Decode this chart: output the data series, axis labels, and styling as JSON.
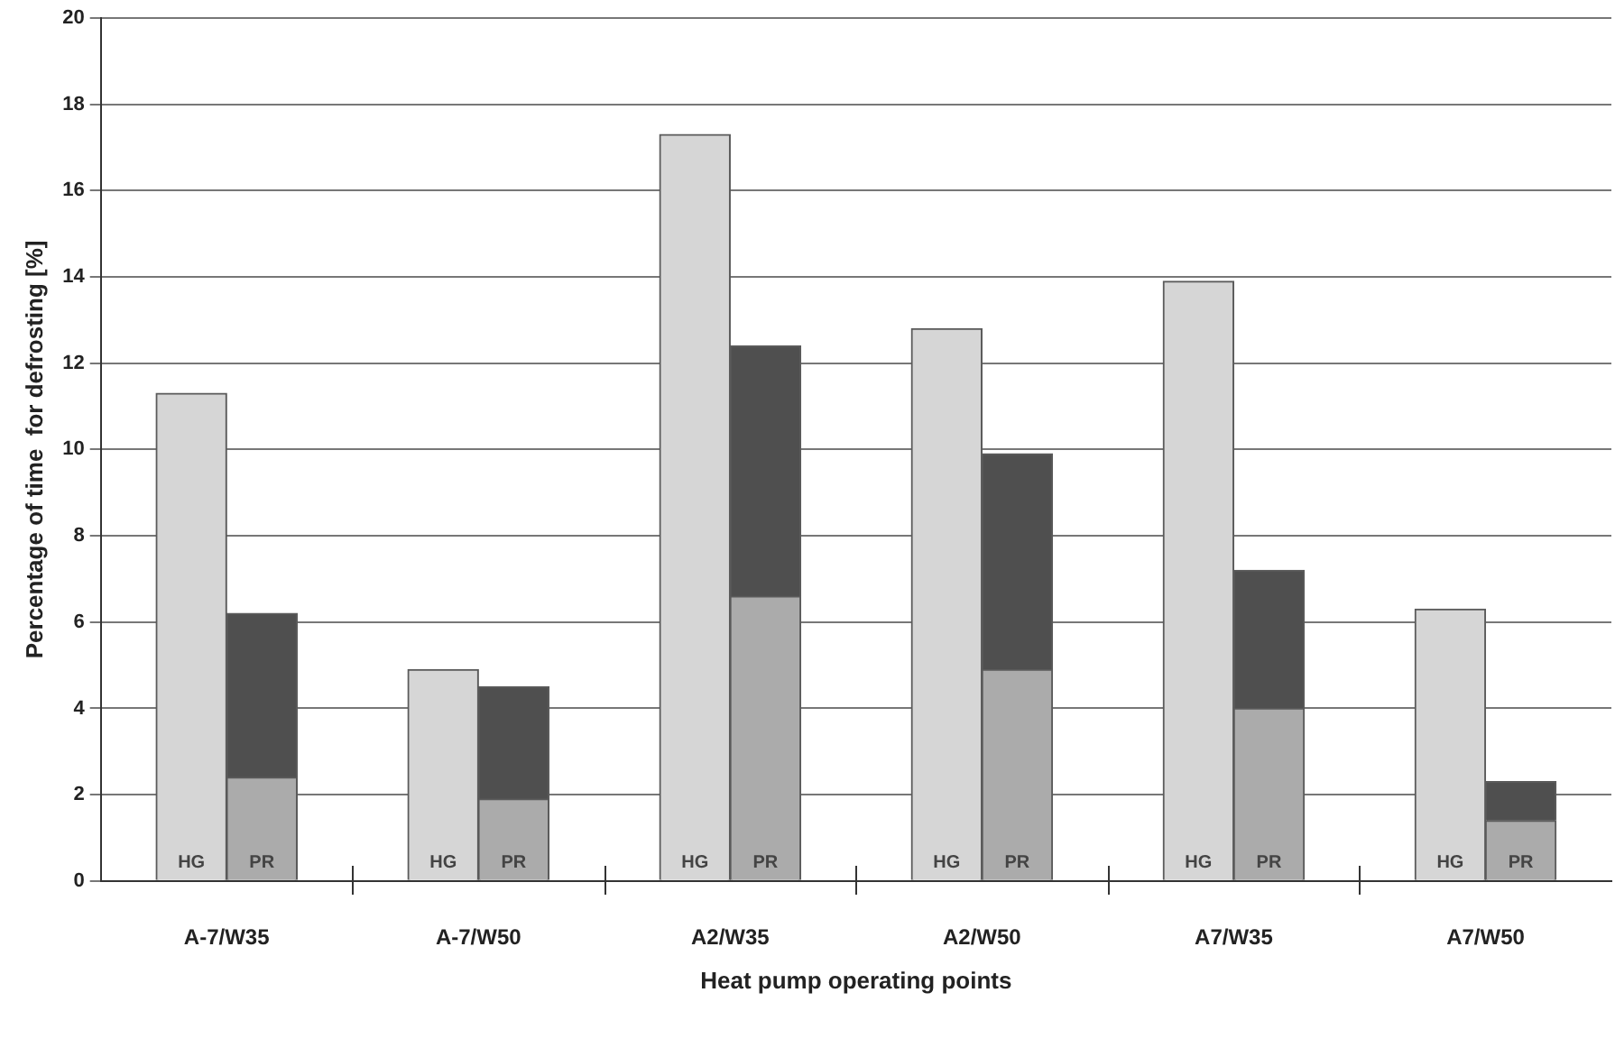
{
  "chart_data": {
    "type": "bar",
    "xlabel": "Heat pump operating points",
    "ylabel": "Percentage of time  for defrosting [%]",
    "categories": [
      "HG",
      "PR",
      "HG",
      "PR",
      "HG",
      "PR",
      "HG",
      "PR",
      "HG",
      "PR",
      "HG",
      "PR"
    ],
    "stacked": true,
    "series": [
      {
        "colors": [
          "#d6d6d6",
          "#ababab",
          "#d6d6d6",
          "#ababab",
          "#d6d6d6",
          "#ababab",
          "#d6d6d6",
          "#ababab",
          "#d6d6d6",
          "#ababab",
          "#d6d6d6",
          "#ababab"
        ],
        "values": [
          11.3,
          2.4,
          4.9,
          1.9,
          17.3,
          6.6,
          12.8,
          4.9,
          13.9,
          4.0,
          6.3,
          1.4
        ]
      },
      {
        "color": "#4f4f4f",
        "values": [
          null,
          3.8,
          null,
          2.6,
          null,
          5.8,
          null,
          5.0,
          null,
          3.2,
          null,
          0.9
        ]
      }
    ],
    "annotations": [
      "A-7/W35",
      "A-7/W50",
      "A2/W35",
      "A2/W50",
      "A7/W35",
      "A7/W50"
    ],
    "ylim": [
      0,
      20
    ],
    "yticks": [
      0,
      2,
      4,
      6,
      8,
      10,
      12,
      14,
      16,
      18,
      20
    ],
    "grid": "y",
    "legend": false
  }
}
